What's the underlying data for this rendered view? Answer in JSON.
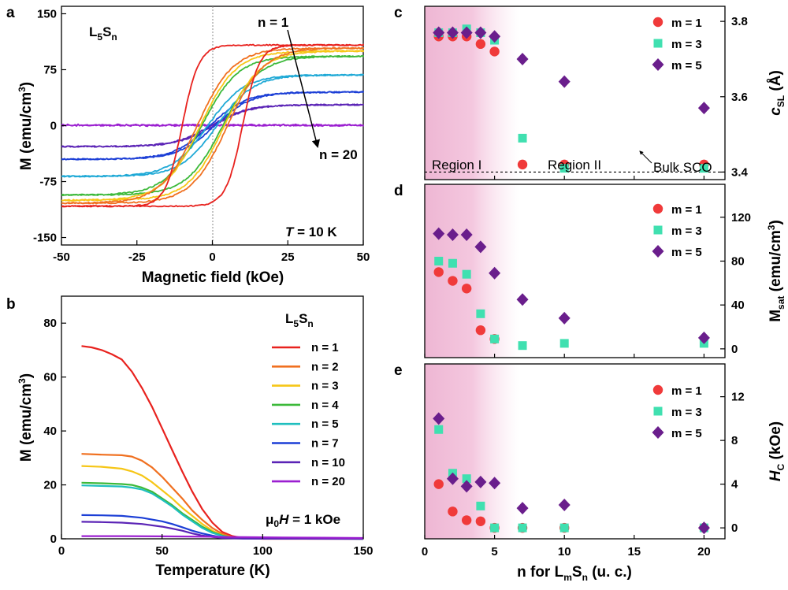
{
  "chart_data": [
    {
      "panel": "a",
      "type": "line",
      "title": "L5Sn",
      "xlabel": "Magnetic field (kOe)",
      "ylabel": "M (emu/cm3)",
      "xlim": [
        -50,
        50
      ],
      "ylim": [
        -160,
        160
      ],
      "xticks": [
        -50,
        -25,
        0,
        25,
        50
      ],
      "yticks": [
        150,
        75,
        0,
        -75,
        -150
      ],
      "annotations": [
        "n = 1",
        "n = 20",
        "T = 10 K"
      ],
      "series": [
        {
          "n": 1,
          "color": "#e8221e",
          "Ms": 108,
          "Hc": 10.0
        },
        {
          "n": 2,
          "color": "#f07020",
          "Ms": 104,
          "Hc": 5.0
        },
        {
          "n": 3,
          "color": "#f6c617",
          "Ms": 100,
          "Hc": 4.0
        },
        {
          "n": 4,
          "color": "#3cb93a",
          "Ms": 93,
          "Hc": 3.5
        },
        {
          "n": 5,
          "color": "#1fa9d6",
          "Ms": 68,
          "Hc": 1.5
        },
        {
          "n": 7,
          "color": "#1c3fd6",
          "Ms": 45,
          "Hc": 0.8
        },
        {
          "n": 10,
          "color": "#5b24b6",
          "Ms": 28,
          "Hc": 0.5
        },
        {
          "n": 20,
          "color": "#9b1fd0",
          "Ms": 1,
          "Hc": 0
        }
      ]
    },
    {
      "panel": "b",
      "type": "line",
      "title": "L5Sn",
      "xlabel": "Temperature (K)",
      "ylabel": "M (emu/cm3)",
      "xlim": [
        0,
        150
      ],
      "ylim": [
        0,
        90
      ],
      "xticks": [
        0,
        50,
        100,
        150
      ],
      "yticks": [
        0,
        20,
        40,
        60,
        80
      ],
      "annotation": "μ0H = 1 kOe",
      "series": [
        {
          "name": "n = 1",
          "color": "#e8221e",
          "points": [
            [
              10,
              71.5
            ],
            [
              15,
              71
            ],
            [
              20,
              70
            ],
            [
              25,
              68.5
            ],
            [
              30,
              66.5
            ],
            [
              35,
              62
            ],
            [
              40,
              56
            ],
            [
              45,
              49
            ],
            [
              50,
              41
            ],
            [
              55,
              33
            ],
            [
              60,
              25
            ],
            [
              65,
              17.5
            ],
            [
              70,
              11
            ],
            [
              75,
              6
            ],
            [
              80,
              2.5
            ],
            [
              85,
              1
            ],
            [
              90,
              0.3
            ],
            [
              100,
              0
            ],
            [
              150,
              0
            ]
          ]
        },
        {
          "name": "n = 2",
          "color": "#f07020",
          "points": [
            [
              10,
              31.5
            ],
            [
              20,
              31.2
            ],
            [
              30,
              31
            ],
            [
              35,
              30.5
            ],
            [
              40,
              29
            ],
            [
              45,
              26.5
            ],
            [
              50,
              23
            ],
            [
              55,
              19
            ],
            [
              60,
              15
            ],
            [
              65,
              10.5
            ],
            [
              70,
              7
            ],
            [
              75,
              4
            ],
            [
              80,
              1.8
            ],
            [
              85,
              0.6
            ],
            [
              90,
              0.2
            ],
            [
              150,
              0
            ]
          ]
        },
        {
          "name": "n = 3",
          "color": "#f6c617",
          "points": [
            [
              10,
              27
            ],
            [
              20,
              26.7
            ],
            [
              30,
              26
            ],
            [
              35,
              25
            ],
            [
              40,
              23.5
            ],
            [
              45,
              21
            ],
            [
              50,
              18
            ],
            [
              55,
              15
            ],
            [
              60,
              11.5
            ],
            [
              65,
              8.5
            ],
            [
              70,
              5.5
            ],
            [
              75,
              3
            ],
            [
              80,
              1.3
            ],
            [
              85,
              0.4
            ],
            [
              150,
              0
            ]
          ]
        },
        {
          "name": "n = 4",
          "color": "#3cb93a",
          "points": [
            [
              10,
              20.8
            ],
            [
              20,
              20.6
            ],
            [
              30,
              20.3
            ],
            [
              35,
              20
            ],
            [
              40,
              19
            ],
            [
              45,
              17.5
            ],
            [
              50,
              15
            ],
            [
              55,
              12.5
            ],
            [
              60,
              9.5
            ],
            [
              65,
              7
            ],
            [
              70,
              4.5
            ],
            [
              75,
              2.5
            ],
            [
              80,
              1.2
            ],
            [
              85,
              0.4
            ],
            [
              150,
              0
            ]
          ]
        },
        {
          "name": "n = 5",
          "color": "#1fbfbf",
          "points": [
            [
              10,
              19.8
            ],
            [
              20,
              19.6
            ],
            [
              30,
              19.4
            ],
            [
              35,
              19
            ],
            [
              40,
              18.3
            ],
            [
              45,
              16.8
            ],
            [
              50,
              14.5
            ],
            [
              55,
              12
            ],
            [
              60,
              9
            ],
            [
              65,
              6.5
            ],
            [
              70,
              4
            ],
            [
              75,
              2.2
            ],
            [
              80,
              1
            ],
            [
              85,
              0.3
            ],
            [
              150,
              0
            ]
          ]
        },
        {
          "name": "n = 7",
          "color": "#1c3fd6",
          "points": [
            [
              10,
              8.8
            ],
            [
              20,
              8.7
            ],
            [
              30,
              8.5
            ],
            [
              40,
              7.8
            ],
            [
              50,
              6.5
            ],
            [
              55,
              5.5
            ],
            [
              60,
              4.3
            ],
            [
              65,
              3
            ],
            [
              70,
              2
            ],
            [
              75,
              1.2
            ],
            [
              80,
              0.5
            ],
            [
              90,
              0.1
            ],
            [
              150,
              0
            ]
          ]
        },
        {
          "name": "n = 10",
          "color": "#5b24b6",
          "points": [
            [
              10,
              6.3
            ],
            [
              20,
              6.2
            ],
            [
              30,
              6
            ],
            [
              40,
              5.5
            ],
            [
              50,
              4.5
            ],
            [
              55,
              3.8
            ],
            [
              60,
              3
            ],
            [
              65,
              2
            ],
            [
              70,
              1.2
            ],
            [
              75,
              0.7
            ],
            [
              80,
              0.3
            ],
            [
              90,
              0.1
            ],
            [
              150,
              0
            ]
          ]
        },
        {
          "name": "n = 20",
          "color": "#9b1fd0",
          "points": [
            [
              10,
              1
            ],
            [
              30,
              1
            ],
            [
              50,
              0.9
            ],
            [
              70,
              0.8
            ],
            [
              90,
              0.6
            ],
            [
              110,
              0.5
            ],
            [
              130,
              0.4
            ],
            [
              150,
              0.3
            ]
          ]
        }
      ]
    },
    {
      "panel": "c",
      "type": "scatter",
      "xlim": [
        0,
        21.5
      ],
      "ylim": [
        3.38,
        3.84
      ],
      "yticks": [
        3.4,
        3.6,
        3.8
      ],
      "ylabel": "c_SL (Å)",
      "shaded_region_n": [
        0,
        6
      ],
      "reference_line": 3.4,
      "labels": [
        "Region I",
        "Region II",
        "Bulk SCO"
      ],
      "series": [
        {
          "name": "m = 1",
          "marker": "circle",
          "color": "#f03a3a",
          "points": [
            [
              1,
              3.76
            ],
            [
              2,
              3.76
            ],
            [
              3,
              3.76
            ],
            [
              4,
              3.74
            ],
            [
              5,
              3.72
            ],
            [
              7,
              3.42
            ],
            [
              10,
              3.42
            ],
            [
              20,
              3.42
            ]
          ]
        },
        {
          "name": "m = 3",
          "marker": "square",
          "color": "#40e0b0",
          "points": [
            [
              1,
              3.77
            ],
            [
              2,
              3.77
            ],
            [
              3,
              3.78
            ],
            [
              4,
              3.77
            ],
            [
              5,
              3.75
            ],
            [
              7,
              3.49
            ],
            [
              10,
              3.41
            ],
            [
              20,
              3.41
            ]
          ]
        },
        {
          "name": "m = 5",
          "marker": "diamond",
          "color": "#6a1e8c",
          "points": [
            [
              1,
              3.77
            ],
            [
              2,
              3.77
            ],
            [
              3,
              3.77
            ],
            [
              4,
              3.77
            ],
            [
              5,
              3.76
            ],
            [
              7,
              3.7
            ],
            [
              10,
              3.64
            ],
            [
              20,
              3.57
            ]
          ]
        }
      ]
    },
    {
      "panel": "d",
      "type": "scatter",
      "xlim": [
        0,
        21.5
      ],
      "ylim": [
        -8,
        150
      ],
      "yticks": [
        0,
        40,
        80,
        120
      ],
      "ylabel": "M_sat (emu/cm3)",
      "shaded_region_n": [
        0,
        6
      ],
      "series": [
        {
          "name": "m = 1",
          "marker": "circle",
          "color": "#f03a3a",
          "points": [
            [
              1,
              70
            ],
            [
              2,
              62
            ],
            [
              3,
              55
            ],
            [
              4,
              17
            ],
            [
              5,
              9
            ]
          ]
        },
        {
          "name": "m = 3",
          "marker": "square",
          "color": "#40e0b0",
          "points": [
            [
              1,
              80
            ],
            [
              2,
              78
            ],
            [
              3,
              68
            ],
            [
              4,
              32
            ],
            [
              5,
              9
            ],
            [
              7,
              3
            ],
            [
              10,
              5
            ],
            [
              20,
              5
            ]
          ]
        },
        {
          "name": "m = 5",
          "marker": "diamond",
          "color": "#6a1e8c",
          "points": [
            [
              1,
              105
            ],
            [
              2,
              104
            ],
            [
              3,
              104
            ],
            [
              4,
              93
            ],
            [
              5,
              69
            ],
            [
              7,
              45
            ],
            [
              10,
              28
            ],
            [
              20,
              10
            ]
          ]
        }
      ]
    },
    {
      "panel": "e",
      "type": "scatter",
      "xlim": [
        0,
        21.5
      ],
      "xticks": [
        0,
        5,
        10,
        15,
        20
      ],
      "xlabel": "n for LmSn (u. c.)",
      "ylim": [
        -1,
        15
      ],
      "yticks": [
        0,
        4,
        8,
        12
      ],
      "ylabel": "H_C (kOe)",
      "shaded_region_n": [
        0,
        6
      ],
      "series": [
        {
          "name": "m = 1",
          "marker": "circle",
          "color": "#f03a3a",
          "points": [
            [
              1,
              4
            ],
            [
              2,
              1.5
            ],
            [
              3,
              0.7
            ],
            [
              4,
              0.6
            ],
            [
              5,
              0
            ],
            [
              7,
              0
            ],
            [
              10,
              0
            ],
            [
              20,
              0
            ]
          ]
        },
        {
          "name": "m = 3",
          "marker": "square",
          "color": "#40e0b0",
          "points": [
            [
              1,
              9
            ],
            [
              2,
              5
            ],
            [
              3,
              4.5
            ],
            [
              4,
              2
            ],
            [
              5,
              0
            ],
            [
              7,
              0
            ],
            [
              10,
              0
            ],
            [
              20,
              0
            ]
          ]
        },
        {
          "name": "m = 5",
          "marker": "diamond",
          "color": "#6a1e8c",
          "points": [
            [
              1,
              10
            ],
            [
              2,
              4.5
            ],
            [
              3,
              3.8
            ],
            [
              4,
              4.2
            ],
            [
              5,
              4.1
            ],
            [
              7,
              1.8
            ],
            [
              10,
              2.1
            ],
            [
              20,
              0
            ]
          ]
        }
      ]
    }
  ],
  "labels": {
    "panel_a": "a",
    "panel_b": "b",
    "panel_c": "c",
    "panel_d": "d",
    "panel_e": "e",
    "title_L": "L",
    "title_5": "5",
    "title_S": "S",
    "title_n": "n",
    "n1": "n = 1",
    "n20": "n = 20",
    "T_italic": "T",
    "T_rest": " = 10 K",
    "mu0": "μ",
    "mu0_sub": "0",
    "mu0_H": "H",
    "mu0_rest": " = 1 kOe",
    "ylabel_a": "M (emu/cm",
    "ylabel_a_sup": "3",
    "ylabel_a_close": ")",
    "ylabel_b": "M (emu/cm",
    "ylabel_b_sup": "3",
    "ylabel_b_close": ")",
    "xlabel_a": "Magnetic field (kOe)",
    "xlabel_b": "Temperature (K)",
    "ylabel_c_main": "c",
    "ylabel_c_sub": "SL",
    "ylabel_c_rest": " (Å)",
    "ylabel_d_main": "M",
    "ylabel_d_sub": "sat",
    "ylabel_d_rest": " (emu/cm",
    "ylabel_d_sup": "3",
    "ylabel_d_close": ")",
    "ylabel_e_main": "H",
    "ylabel_e_sub": "C",
    "ylabel_e_rest": " (kOe)",
    "xlabel_e_pre": "n for L",
    "xlabel_e_m": "m",
    "xlabel_e_S": "S",
    "xlabel_e_n": "n",
    "xlabel_e_post": " (u. c.)",
    "region1": "Region I",
    "region2": "Region II",
    "bulk": "Bulk SCO",
    "legend_m1": "m = 1",
    "legend_m3": "m = 3",
    "legend_m5": "m = 5"
  }
}
